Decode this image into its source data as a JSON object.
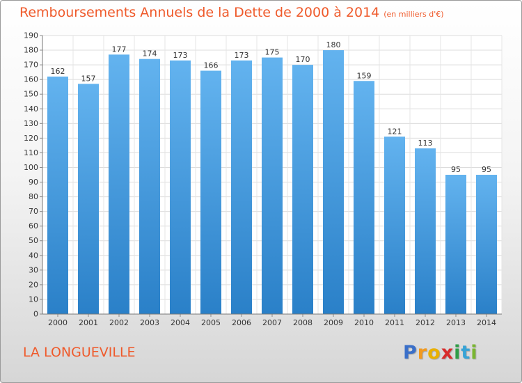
{
  "chart_data": {
    "type": "bar",
    "title": "Remboursements Annuels de la Dette de 2000 à 2014",
    "subtitle": "(en milliers d'€)",
    "categories": [
      "2000",
      "2001",
      "2002",
      "2003",
      "2004",
      "2005",
      "2006",
      "2007",
      "2008",
      "2009",
      "2010",
      "2011",
      "2012",
      "2013",
      "2014"
    ],
    "values": [
      162,
      157,
      177,
      174,
      173,
      166,
      173,
      175,
      170,
      180,
      159,
      121,
      113,
      95,
      95
    ],
    "ylim": [
      0,
      190
    ],
    "ytick_step": 10,
    "grid": true,
    "xlabel": "",
    "ylabel": ""
  },
  "footer": {
    "commune": "LA LONGUEVILLE",
    "logo_letters": [
      "P",
      "r",
      "o",
      "x",
      "i",
      "t",
      "i"
    ]
  },
  "colors": {
    "title": "#ef5a2b",
    "bar_light": "#63b3ef",
    "bar_dark": "#2a80c8",
    "logo": [
      "#3a6fc9",
      "#f29a1f",
      "#e9b000",
      "#d82c2c",
      "#2f9d47",
      "#37a3d6",
      "#7ab630"
    ]
  }
}
